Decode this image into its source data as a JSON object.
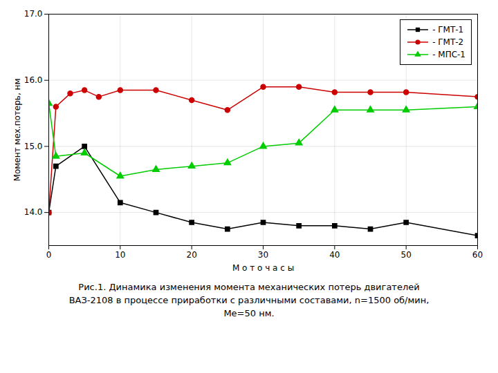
{
  "chart_data": {
    "type": "line",
    "xlabel": "М о т о ч а с ы",
    "ylabel": "Момент мех.потерь, нм",
    "caption": [
      "Рис.1. Динамика изменения момента механических потерь двигателей",
      "ВАЗ-2108 в процессе приработки с различными составами, n=1500 об/мин,",
      "Ме=50 нм."
    ],
    "series": [
      {
        "name": " - ГМТ-1",
        "color": "#000000",
        "marker": "square",
        "x": [
          0,
          1,
          5,
          10,
          15,
          20,
          25,
          30,
          35,
          40,
          45,
          50,
          60
        ],
        "values": [
          14.0,
          14.7,
          15.0,
          14.15,
          14.0,
          13.85,
          13.75,
          13.85,
          13.8,
          13.8,
          13.75,
          13.85,
          13.65
        ]
      },
      {
        "name": " - ГМТ-2",
        "color": "#cc0000",
        "marker": "circle",
        "x": [
          0,
          1,
          3,
          5,
          7,
          10,
          15,
          20,
          25,
          30,
          35,
          40,
          45,
          50,
          60
        ],
        "values": [
          14.0,
          15.6,
          15.8,
          15.85,
          15.75,
          15.85,
          15.85,
          15.7,
          15.55,
          15.9,
          15.9,
          15.82,
          15.82,
          15.82,
          15.75
        ]
      },
      {
        "name": " - МПС-1",
        "color": "#00cc00",
        "marker": "triangle",
        "x": [
          0,
          1,
          5,
          10,
          15,
          20,
          25,
          30,
          35,
          40,
          45,
          50,
          60
        ],
        "values": [
          15.65,
          14.85,
          14.9,
          14.55,
          14.65,
          14.7,
          14.75,
          15.0,
          15.05,
          15.55,
          15.55,
          15.55,
          15.6
        ]
      }
    ],
    "xlim": [
      0,
      60
    ],
    "xticks": [
      0,
      10,
      20,
      30,
      40,
      50,
      60
    ],
    "ylim": [
      13.5,
      17.0
    ],
    "yticks": [
      14,
      15,
      16,
      17
    ],
    "grid": true,
    "legend": "upper right"
  }
}
